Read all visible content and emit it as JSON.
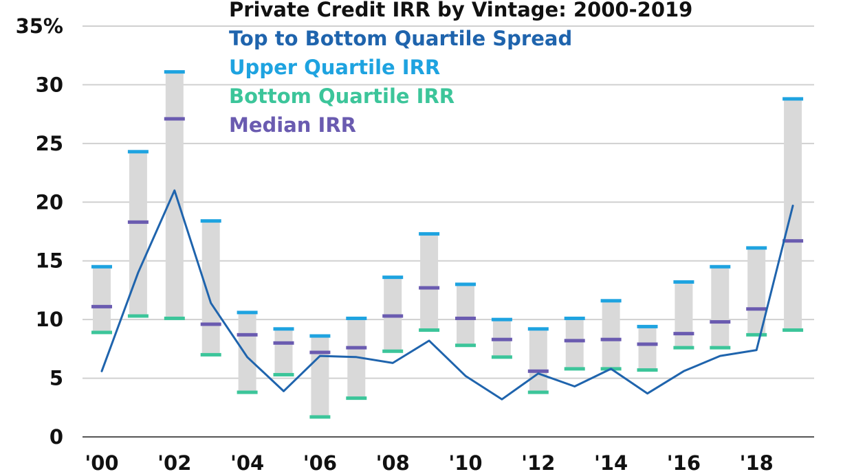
{
  "chart_data": {
    "type": "floating-bar-with-line",
    "title": "Private Credit IRR by Vintage: 2000-2019",
    "legend": [
      {
        "label": "Top to Bottom Quartile Spread",
        "color": "#1f64ad"
      },
      {
        "label": "Upper Quartile IRR",
        "color": "#1ea3e0"
      },
      {
        "label": "Bottom Quartile IRR",
        "color": "#3cc59a"
      },
      {
        "label": "Median IRR",
        "color": "#6a5bb0"
      }
    ],
    "legend_placement": "top",
    "grid": true,
    "ylim": [
      0,
      35
    ],
    "y_ticks": [
      0,
      5,
      10,
      15,
      20,
      25,
      30,
      35
    ],
    "y_tick_labels": [
      "0",
      "5",
      "10",
      "15",
      "20",
      "25",
      "30",
      "35%"
    ],
    "x": [
      2000,
      2001,
      2002,
      2003,
      2004,
      2005,
      2006,
      2007,
      2008,
      2009,
      2010,
      2011,
      2012,
      2013,
      2014,
      2015,
      2016,
      2017,
      2018,
      2019
    ],
    "x_tick_labels": [
      "'00",
      "'02",
      "'04",
      "'06",
      "'08",
      "'10",
      "'12",
      "'14",
      "'16",
      "'18"
    ],
    "series": [
      {
        "name": "Upper Quartile IRR",
        "values": [
          14.5,
          24.3,
          31.1,
          18.4,
          10.6,
          9.2,
          8.6,
          10.1,
          13.6,
          17.3,
          13.0,
          10.0,
          9.2,
          10.1,
          11.6,
          9.4,
          13.2,
          14.5,
          16.1,
          28.8
        ]
      },
      {
        "name": "Median IRR",
        "values": [
          11.1,
          18.3,
          27.1,
          9.6,
          8.7,
          8.0,
          7.2,
          7.6,
          10.3,
          12.7,
          10.1,
          8.3,
          5.6,
          8.2,
          8.3,
          7.9,
          8.8,
          9.8,
          10.9,
          16.7
        ]
      },
      {
        "name": "Bottom Quartile IRR",
        "values": [
          8.9,
          10.3,
          10.1,
          7.0,
          3.8,
          5.3,
          1.7,
          3.3,
          7.3,
          9.1,
          7.8,
          6.8,
          3.8,
          5.8,
          5.8,
          5.7,
          7.6,
          7.6,
          8.7,
          9.1
        ]
      },
      {
        "name": "Top to Bottom Quartile Spread",
        "values": [
          5.6,
          14.0,
          21.0,
          11.4,
          6.8,
          3.9,
          6.9,
          6.8,
          6.3,
          8.2,
          5.2,
          3.2,
          5.4,
          4.3,
          5.8,
          3.7,
          5.6,
          6.9,
          7.4,
          19.7
        ]
      }
    ]
  },
  "colors": {
    "range_bar": "#d9d9d9",
    "grid": "#d0d0d0",
    "axis": "#555555",
    "title": "#111111"
  }
}
